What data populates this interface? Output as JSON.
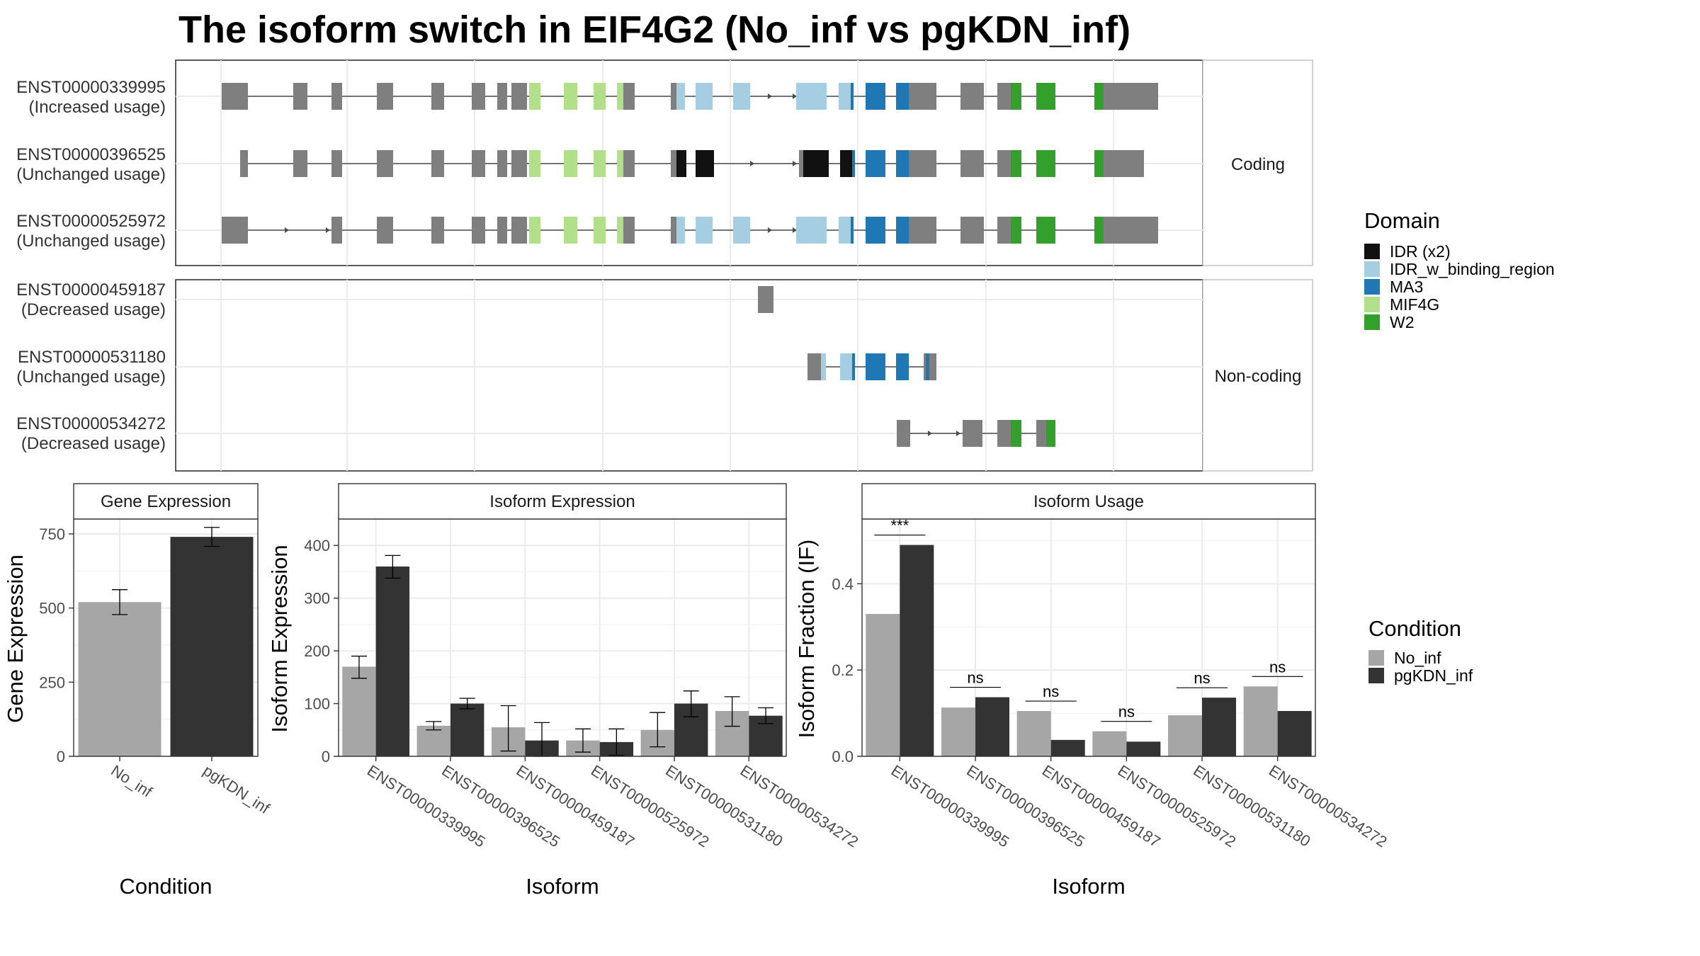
{
  "title": "The isoform switch in EIF4G2 (No_inf vs pgKDN_inf)",
  "colors": {
    "exon": "#7f7f7f",
    "intron": "#4d4d4d",
    "grid": "#ebebeb",
    "no_inf": "#a6a6a6",
    "pgkdn_inf": "#333333",
    "IDR (x2)": "#111111",
    "IDR_w_binding_region": "#a6cee3",
    "MA3": "#1f78b4",
    "MIF4G": "#b2df8a",
    "W2": "#33a02c"
  },
  "structure": {
    "facets": [
      {
        "label": "Coding",
        "isoforms": [
          {
            "id": "ENST00000339995",
            "usage": "(Increased usage)"
          },
          {
            "id": "ENST00000396525",
            "usage": "(Unchanged usage)"
          },
          {
            "id": "ENST00000525972",
            "usage": "(Unchanged usage)"
          }
        ]
      },
      {
        "label": "Non-coding",
        "isoforms": [
          {
            "id": "ENST00000459187",
            "usage": "(Decreased usage)"
          },
          {
            "id": "ENST00000531180",
            "usage": "(Unchanged usage)"
          },
          {
            "id": "ENST00000534272",
            "usage": "(Decreased usage)"
          }
        ]
      }
    ],
    "domain_legend": {
      "title": "Domain",
      "items": [
        "IDR (x2)",
        "IDR_w_binding_region",
        "MA3",
        "MIF4G",
        "W2"
      ]
    }
  },
  "chart_data": [
    {
      "type": "bar",
      "title": "Gene Expression",
      "xlabel": "Condition",
      "ylabel": "Gene Expression",
      "categories": [
        "No_inf",
        "pgKDN_inf"
      ],
      "values": [
        520,
        740
      ],
      "errors": [
        [
          478,
          562
        ],
        [
          708,
          772
        ]
      ],
      "ylim": [
        0,
        800
      ],
      "yticks": [
        0,
        250,
        500,
        750
      ],
      "grid": true
    },
    {
      "type": "bar",
      "title": "Isoform Expression",
      "xlabel": "Isoform",
      "ylabel": "Isoform Expression",
      "categories": [
        "ENST00000339995",
        "ENST00000396525",
        "ENST00000459187",
        "ENST00000525972",
        "ENST00000531180",
        "ENST00000534272"
      ],
      "series": [
        {
          "name": "No_inf",
          "values": [
            170,
            58,
            55,
            30,
            50,
            86
          ],
          "errors": [
            [
              148,
              190
            ],
            [
              50,
              66
            ],
            [
              10,
              96
            ],
            [
              8,
              52
            ],
            [
              18,
              83
            ],
            [
              57,
              113
            ]
          ]
        },
        {
          "name": "pgKDN_inf",
          "values": [
            360,
            100,
            30,
            27,
            100,
            77
          ],
          "errors": [
            [
              338,
              381
            ],
            [
              90,
              110
            ],
            [
              0,
              64
            ],
            [
              2,
              52
            ],
            [
              75,
              124
            ],
            [
              62,
              92
            ]
          ]
        }
      ],
      "ylim": [
        0,
        450
      ],
      "yticks": [
        0,
        100,
        200,
        300,
        400
      ],
      "grid": true
    },
    {
      "type": "bar",
      "title": "Isoform Usage",
      "xlabel": "Isoform",
      "ylabel": "Isoform Fraction (IF)",
      "categories": [
        "ENST00000339995",
        "ENST00000396525",
        "ENST00000459187",
        "ENST00000525972",
        "ENST00000531180",
        "ENST00000534272"
      ],
      "series": [
        {
          "name": "No_inf",
          "values": [
            0.33,
            0.113,
            0.105,
            0.058,
            0.095,
            0.162
          ]
        },
        {
          "name": "pgKDN_inf",
          "values": [
            0.49,
            0.137,
            0.038,
            0.034,
            0.136,
            0.105
          ]
        }
      ],
      "significance": [
        "***",
        "ns",
        "ns",
        "ns",
        "ns",
        "ns"
      ],
      "ylim": [
        0,
        0.55
      ],
      "yticks": [
        0.0,
        0.2,
        0.4
      ],
      "grid": true
    }
  ],
  "condition_legend": {
    "title": "Condition",
    "items": [
      "No_inf",
      "pgKDN_inf"
    ]
  }
}
